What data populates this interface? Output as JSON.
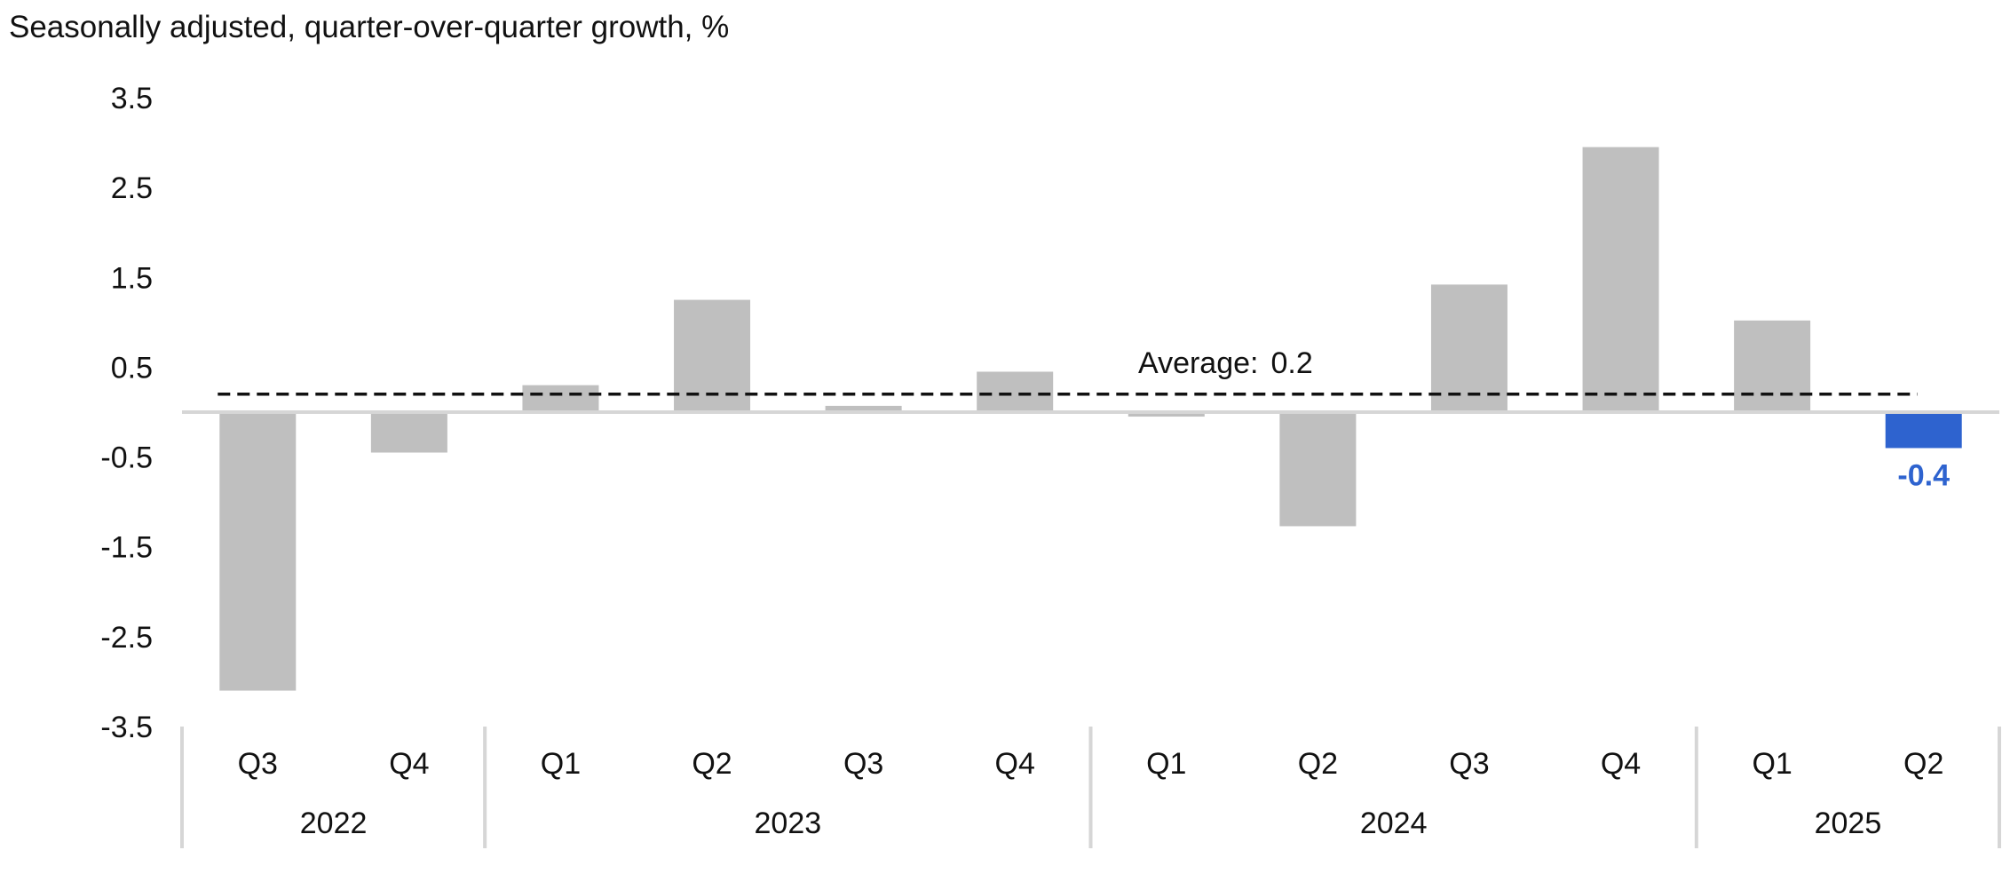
{
  "chart_data": {
    "type": "bar",
    "subtitle": "Seasonally adjusted, quarter-over-quarter growth, %",
    "categories": [
      "Q3",
      "Q4",
      "Q1",
      "Q2",
      "Q3",
      "Q4",
      "Q1",
      "Q2",
      "Q3",
      "Q4",
      "Q1",
      "Q2"
    ],
    "category_groups": [
      {
        "label": "2022",
        "count": 2
      },
      {
        "label": "2023",
        "count": 4
      },
      {
        "label": "2024",
        "count": 4
      },
      {
        "label": "2025",
        "count": 2
      }
    ],
    "values": [
      -3.1,
      -0.45,
      0.3,
      1.25,
      0.07,
      0.45,
      -0.05,
      -1.27,
      1.42,
      2.95,
      1.02,
      -0.4
    ],
    "highlight": {
      "index": 11,
      "label": "-0.4",
      "color": "#2e63cf"
    },
    "bar_color": "#bfbfbf",
    "ylim": [
      -3.5,
      3.5
    ],
    "yticks": [
      "3.5",
      "2.5",
      "1.5",
      "0.5",
      "-0.5",
      "-1.5",
      "-2.5",
      "-3.5"
    ],
    "average": {
      "value": 0.2,
      "label": "Average:",
      "value_label": "0.2"
    },
    "xlabel": "",
    "ylabel": "",
    "grid": false,
    "legend": "none"
  }
}
